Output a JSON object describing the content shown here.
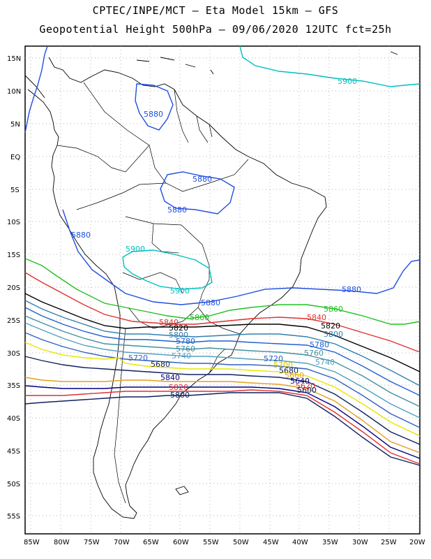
{
  "title_line1": "CPTEC/INPE/MCT –  Eta Model 15km – GFS",
  "title_line2": "Geopotential Height 500hPa – 09/06/2020 12UTC fct=25h",
  "lat_labels": [
    "15N",
    "10N",
    "5N",
    "EQ",
    "5S",
    "10S",
    "15S",
    "20S",
    "25S",
    "30S",
    "35S",
    "40S",
    "45S",
    "50S",
    "55S"
  ],
  "lon_labels": [
    "85W",
    "80W",
    "75W",
    "70W",
    "65W",
    "60W",
    "55W",
    "50W",
    "45W",
    "40W",
    "35W",
    "30W",
    "25W",
    "20W"
  ],
  "contours": [
    {
      "level": "5900",
      "color": "#00c0c0"
    },
    {
      "level": "5880",
      "color": "#1f4fe0"
    },
    {
      "level": "5860",
      "color": "#20c020"
    },
    {
      "level": "5840",
      "color": "#e03030"
    },
    {
      "level": "5820",
      "color": "#000000"
    },
    {
      "level": "5800",
      "color": "#3080b0"
    },
    {
      "level": "5780",
      "color": "#2060d0"
    },
    {
      "level": "5760",
      "color": "#4090a0"
    },
    {
      "level": "5740",
      "color": "#50a0c0"
    },
    {
      "level": "5720",
      "color": "#3060c0"
    },
    {
      "level": "5700",
      "color": "#e6e600"
    },
    {
      "level": "5680",
      "color": "#e0a020"
    },
    {
      "level": "5660",
      "color": "#e03030"
    },
    {
      "level": "5640",
      "color": "#000080"
    },
    {
      "level": "5620",
      "color": "#e03030"
    },
    {
      "level": "5600",
      "color": "#102060"
    }
  ],
  "labels": {
    "l5900a": "5900",
    "l5900b": "5900",
    "l5900c": "5900",
    "l5880a": "5880",
    "l5880b": "5880",
    "l5880c": "5880",
    "l5880d": "5880",
    "l5880e": "5880",
    "l5880f": "5880",
    "l5860a": "5860",
    "l5860b": "5860",
    "l5840a": "5840",
    "l5840b": "5840",
    "l5840c": "5840",
    "l5820a": "5820",
    "l5820b": "5820",
    "l5820c": "5820",
    "l5800a": "5800",
    "l5800b": "5800",
    "l5800c": "5800",
    "l5780a": "5780",
    "l5780b": "5780",
    "l5760a": "5760",
    "l5760b": "5760",
    "l5740a": "5740",
    "l5740b": "5740",
    "l5720a": "5720",
    "l5720b": "5720",
    "l5700a": "5700",
    "l5680a": "5680",
    "l5680b": "5680",
    "l5660a": "5660",
    "l5640a": "5640",
    "l5620a": "5620",
    "l5600a": "5600"
  }
}
